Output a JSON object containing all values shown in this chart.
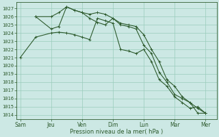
{
  "bg_color": "#cce8e4",
  "grid_color": "#99ccbb",
  "line_color": "#2d5a2d",
  "xlabel": "Pression niveau de la mer( hPa )",
  "ylim": [
    1013.5,
    1027.8
  ],
  "yticks": [
    1014,
    1015,
    1016,
    1017,
    1018,
    1019,
    1020,
    1021,
    1022,
    1023,
    1024,
    1025,
    1026,
    1027
  ],
  "day_labels": [
    "Sam",
    "Jeu",
    "Ven",
    "Dim",
    "Lun",
    "Mar",
    "Mer"
  ],
  "day_positions": [
    0,
    4,
    8,
    12,
    16,
    20,
    24
  ],
  "xlim": [
    -0.5,
    25.5
  ],
  "series": [
    {
      "x": [
        0,
        2,
        4,
        5,
        6,
        7,
        8,
        9,
        10,
        11,
        12,
        13,
        14,
        15,
        16,
        17,
        18,
        19,
        20,
        21,
        22,
        23,
        24
      ],
      "y": [
        1021.0,
        1023.5,
        1024.0,
        1024.1,
        1024.0,
        1023.8,
        1023.5,
        1023.2,
        1025.8,
        1025.5,
        1025.2,
        1022.0,
        1021.8,
        1021.5,
        1022.0,
        1020.5,
        1018.3,
        1017.5,
        1016.2,
        1015.5,
        1014.8,
        1015.0,
        1014.2
      ]
    },
    {
      "x": [
        2,
        4,
        5,
        6,
        7,
        8,
        9,
        10,
        11,
        12,
        13,
        14,
        15,
        16,
        17,
        18,
        19,
        20,
        21,
        22,
        23,
        24
      ],
      "y": [
        1026.0,
        1026.0,
        1026.5,
        1027.2,
        1026.8,
        1026.5,
        1026.3,
        1026.5,
        1026.3,
        1025.8,
        1025.2,
        1025.0,
        1024.8,
        1023.8,
        1022.0,
        1020.5,
        1018.3,
        1017.5,
        1016.2,
        1015.5,
        1014.8,
        1014.2
      ]
    },
    {
      "x": [
        2,
        4,
        5,
        6,
        7,
        8,
        9,
        10,
        11,
        12,
        13,
        14,
        15,
        16,
        17,
        18,
        19,
        20,
        21,
        22,
        23,
        24
      ],
      "y": [
        1026.0,
        1024.5,
        1024.8,
        1027.2,
        1026.8,
        1026.5,
        1025.8,
        1025.3,
        1025.0,
        1025.8,
        1025.0,
        1024.8,
        1024.5,
        1022.5,
        1021.5,
        1019.2,
        1018.0,
        1016.5,
        1016.0,
        1015.5,
        1014.2,
        1014.2
      ]
    }
  ]
}
